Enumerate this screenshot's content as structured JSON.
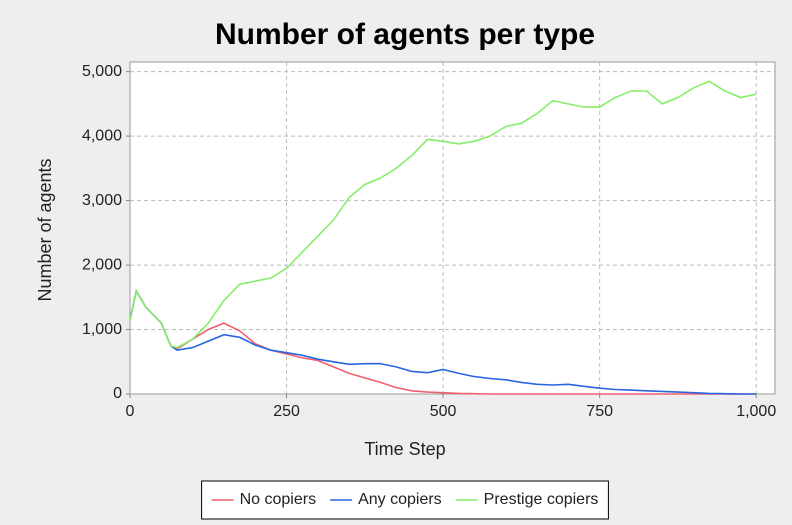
{
  "chart_data": {
    "type": "line",
    "title": "Number of agents per type",
    "xlabel": "Time Step",
    "ylabel": "Number of agents",
    "x": [
      0,
      10,
      25,
      50,
      65,
      75,
      100,
      125,
      150,
      175,
      200,
      225,
      250,
      275,
      300,
      325,
      350,
      375,
      400,
      425,
      450,
      475,
      500,
      525,
      550,
      575,
      600,
      625,
      650,
      675,
      700,
      725,
      750,
      775,
      800,
      825,
      850,
      875,
      900,
      925,
      950,
      975,
      1000
    ],
    "series": [
      {
        "name": "No copiers",
        "color": "#f0606e",
        "values": [
          1150,
          1600,
          1350,
          1100,
          750,
          700,
          850,
          1000,
          1100,
          980,
          780,
          680,
          620,
          560,
          520,
          420,
          320,
          250,
          180,
          100,
          50,
          30,
          20,
          10,
          5,
          0,
          0,
          0,
          0,
          0,
          0,
          0,
          0,
          0,
          0,
          0,
          0,
          0,
          0,
          0,
          0,
          0,
          0
        ]
      },
      {
        "name": "Any copiers",
        "color": "#2a66e0",
        "values": [
          1150,
          1600,
          1350,
          1100,
          750,
          680,
          720,
          820,
          920,
          880,
          760,
          680,
          640,
          600,
          540,
          500,
          460,
          470,
          470,
          420,
          350,
          330,
          380,
          320,
          270,
          240,
          220,
          180,
          150,
          140,
          150,
          120,
          90,
          70,
          60,
          50,
          40,
          30,
          20,
          10,
          5,
          0,
          0
        ]
      },
      {
        "name": "Prestige copiers",
        "color": "#86ee6a",
        "values": [
          1150,
          1600,
          1350,
          1100,
          750,
          720,
          850,
          1100,
          1450,
          1700,
          1750,
          1800,
          1950,
          2200,
          2450,
          2700,
          3050,
          3250,
          3350,
          3500,
          3700,
          3950,
          3920,
          3880,
          3920,
          4000,
          4150,
          4200,
          4350,
          4550,
          4500,
          4450,
          4450,
          4600,
          4700,
          4700,
          4500,
          4600,
          4750,
          4850,
          4700,
          4600,
          4650
        ]
      }
    ],
    "xlim": [
      0,
      1030
    ],
    "ylim": [
      0,
      5150
    ],
    "xticks": [
      0,
      250,
      500,
      750,
      {
        "value": 1000,
        "label": "1,000"
      }
    ],
    "yticks": [
      0,
      {
        "value": 1000,
        "label": "1,000"
      },
      {
        "value": 2000,
        "label": "2,000"
      },
      {
        "value": 3000,
        "label": "3,000"
      },
      {
        "value": 4000,
        "label": "4,000"
      },
      {
        "value": 5000,
        "label": "5,000"
      }
    ],
    "grid": true,
    "legend": "bottom"
  }
}
